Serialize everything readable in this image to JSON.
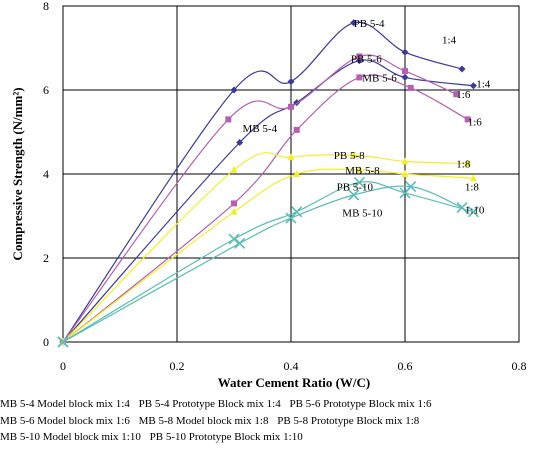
{
  "chart_data": {
    "type": "line",
    "xlabel": "Water Cement Ratio (W/C)",
    "ylabel": "Compressive Strength (N/mm²)",
    "xlim": [
      0,
      0.8
    ],
    "ylim": [
      0,
      8
    ],
    "x_ticks": [
      "0",
      "0.2",
      "0.4",
      "0.6",
      "0.8"
    ],
    "y_ticks": [
      "0",
      "2",
      "4",
      "6",
      "8"
    ],
    "grid": true,
    "series": [
      {
        "name": "PB 5-4",
        "color": "#3b3b95",
        "marker": "diamond",
        "x": [
          0,
          0.3,
          0.4,
          0.51,
          0.6,
          0.7
        ],
        "y": [
          0,
          6.0,
          6.2,
          7.6,
          6.9,
          6.5
        ]
      },
      {
        "name": "MB 5-4",
        "color": "#3b3b95",
        "marker": "diamond",
        "x": [
          0,
          0.31,
          0.41,
          0.52,
          0.6,
          0.72
        ],
        "y": [
          0,
          4.75,
          5.7,
          6.7,
          6.3,
          6.1
        ]
      },
      {
        "name": "PB 5-6",
        "color": "#b45fb0",
        "marker": "square",
        "x": [
          0,
          0.29,
          0.4,
          0.52,
          0.6,
          0.69
        ],
        "y": [
          0,
          5.3,
          5.6,
          6.8,
          6.45,
          5.9
        ]
      },
      {
        "name": "MB 5-6",
        "color": "#b45fb0",
        "marker": "square",
        "x": [
          0,
          0.3,
          0.41,
          0.52,
          0.61,
          0.71
        ],
        "y": [
          0,
          3.3,
          5.05,
          6.3,
          6.05,
          5.3
        ]
      },
      {
        "name": "PB 5-8",
        "color": "#f2ee2c",
        "marker": "triangle",
        "x": [
          0,
          0.3,
          0.4,
          0.51,
          0.6,
          0.71
        ],
        "y": [
          0,
          4.1,
          4.4,
          4.45,
          4.3,
          4.25
        ]
      },
      {
        "name": "MB 5-8",
        "color": "#f2ee2c",
        "marker": "triangle",
        "x": [
          0,
          0.3,
          0.41,
          0.52,
          0.6,
          0.72
        ],
        "y": [
          0,
          3.1,
          4.0,
          4.1,
          4.0,
          3.9
        ]
      },
      {
        "name": "PB 5-10",
        "color": "#5bbdb6",
        "marker": "x",
        "x": [
          0,
          0.3,
          0.41,
          0.52,
          0.6,
          0.72
        ],
        "y": [
          0,
          2.45,
          3.1,
          3.8,
          3.55,
          3.1
        ]
      },
      {
        "name": "MB 5-10",
        "color": "#5bbdb6",
        "marker": "x",
        "x": [
          0,
          0.31,
          0.4,
          0.51,
          0.61,
          0.7
        ],
        "y": [
          0,
          2.35,
          2.95,
          3.5,
          3.7,
          3.2
        ]
      }
    ],
    "annotations": [
      {
        "text": "PB 5-4",
        "x": 0.51,
        "y": 7.6
      },
      {
        "text": "1:4",
        "x": 0.665,
        "y": 7.2
      },
      {
        "text": "PB 5-6",
        "x": 0.505,
        "y": 6.75
      },
      {
        "text": "MB 5-6",
        "x": 0.525,
        "y": 6.3
      },
      {
        "text": "1:4",
        "x": 0.725,
        "y": 6.15
      },
      {
        "text": "1:6",
        "x": 0.69,
        "y": 5.9
      },
      {
        "text": "MB 5-4",
        "x": 0.315,
        "y": 5.1
      },
      {
        "text": "1:6",
        "x": 0.71,
        "y": 5.25
      },
      {
        "text": "PB 5-8",
        "x": 0.475,
        "y": 4.45
      },
      {
        "text": "1:8",
        "x": 0.69,
        "y": 4.25
      },
      {
        "text": "MB 5-8",
        "x": 0.495,
        "y": 4.1
      },
      {
        "text": "PB 5-10",
        "x": 0.48,
        "y": 3.7
      },
      {
        "text": "1:8",
        "x": 0.705,
        "y": 3.7
      },
      {
        "text": "MB 5-10",
        "x": 0.49,
        "y": 3.08
      },
      {
        "text": "1:10",
        "x": 0.705,
        "y": 3.15
      }
    ]
  },
  "legend_caption": [
    [
      "MB 5-4 Model block mix 1:4",
      "PB 5-4 Prototype Block mix 1:4",
      "PB 5-6 Prototype Block mix 1:6"
    ],
    [
      "MB 5-6 Model block mix 1:6",
      "MB 5-8 Model block mix 1:8",
      "PB 5-8 Prototype Block mix 1:8"
    ],
    [
      "MB 5-10 Model block mix 1:10",
      "PB 5-10 Prototype Block mix 1:10"
    ]
  ]
}
